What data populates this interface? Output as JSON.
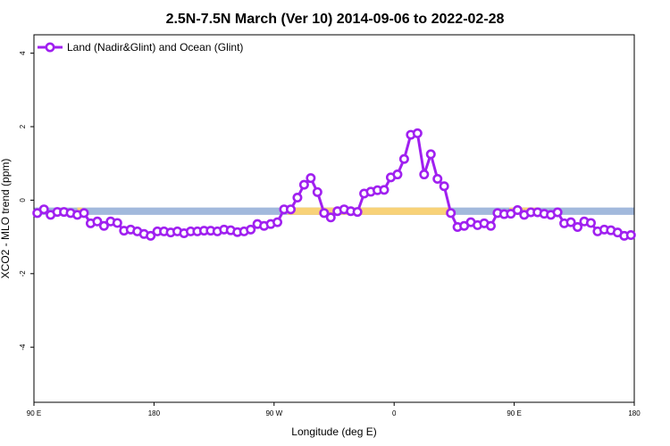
{
  "chart_data": {
    "type": "line",
    "title": "2.5N-7.5N March (Ver 10)   2014-09-06 to 2022-02-28",
    "xlabel": "Longitude (deg E)",
    "ylabel": "XCO2 - MLO trend (ppm)",
    "xlim": [
      90,
      450
    ],
    "ylim": [
      -5.5,
      4.5
    ],
    "x_ticks": [
      {
        "value": 90,
        "label": "90 E"
      },
      {
        "value": 162,
        "label": "180"
      },
      {
        "value": 234,
        "label": "90 W"
      },
      {
        "value": 306,
        "label": "0"
      },
      {
        "value": 378,
        "label": "90 E"
      },
      {
        "value": 450,
        "label": "180"
      }
    ],
    "y_ticks": [
      {
        "value": 4,
        "label": "4"
      },
      {
        "value": 2,
        "label": "2"
      },
      {
        "value": 0,
        "label": "0"
      },
      {
        "value": -2,
        "label": "-2"
      },
      {
        "value": -4,
        "label": "-4"
      }
    ],
    "legend": {
      "position": "top-left"
    },
    "colors": {
      "line": "#a020f0",
      "ocean": "#a2b9dc",
      "land": "#f8d278"
    },
    "surface_band": {
      "y_top": -0.2,
      "y_bottom": -0.4,
      "land_segments": [
        [
          116,
          119
        ],
        [
          242,
          340
        ],
        [
          375,
          392
        ]
      ]
    },
    "series": [
      {
        "name": "Land (Nadir&Glint) and Ocean (Glint)",
        "x": [
          92,
          96,
          100,
          104,
          108,
          112,
          116,
          120,
          124,
          128,
          132,
          136,
          140,
          144,
          148,
          152,
          156,
          160,
          164,
          168,
          172,
          176,
          180,
          184,
          188,
          192,
          196,
          200,
          204,
          208,
          212,
          216,
          220,
          224,
          228,
          232,
          236,
          240,
          244,
          248,
          252,
          256,
          260,
          264,
          268,
          272,
          276,
          280,
          284,
          288,
          292,
          296,
          300,
          304,
          308,
          312,
          316,
          320,
          324,
          328,
          332,
          336,
          340,
          344,
          348,
          352,
          356,
          360,
          364,
          368,
          372,
          376,
          380,
          384,
          388,
          392,
          396,
          400,
          404,
          408,
          412,
          416,
          420,
          424,
          428,
          432,
          436,
          440,
          444,
          448
        ],
        "values": [
          -0.35,
          -0.25,
          -0.4,
          -0.32,
          -0.32,
          -0.35,
          -0.4,
          -0.35,
          -0.63,
          -0.58,
          -0.7,
          -0.58,
          -0.62,
          -0.83,
          -0.8,
          -0.85,
          -0.92,
          -0.97,
          -0.85,
          -0.85,
          -0.88,
          -0.85,
          -0.9,
          -0.85,
          -0.85,
          -0.83,
          -0.83,
          -0.85,
          -0.8,
          -0.82,
          -0.87,
          -0.85,
          -0.8,
          -0.65,
          -0.7,
          -0.65,
          -0.6,
          -0.25,
          -0.25,
          0.07,
          0.42,
          0.6,
          0.22,
          -0.35,
          -0.47,
          -0.3,
          -0.25,
          -0.3,
          -0.32,
          0.18,
          0.23,
          0.27,
          0.28,
          0.62,
          0.7,
          1.12,
          1.78,
          1.82,
          0.7,
          1.25,
          0.58,
          0.38,
          -0.35,
          -0.73,
          -0.7,
          -0.6,
          -0.68,
          -0.63,
          -0.7,
          -0.35,
          -0.38,
          -0.37,
          -0.27,
          -0.4,
          -0.33,
          -0.33,
          -0.37,
          -0.4,
          -0.33,
          -0.63,
          -0.6,
          -0.73,
          -0.58,
          -0.62,
          -0.85,
          -0.8,
          -0.82,
          -0.88,
          -0.97,
          -0.95
        ]
      }
    ]
  }
}
